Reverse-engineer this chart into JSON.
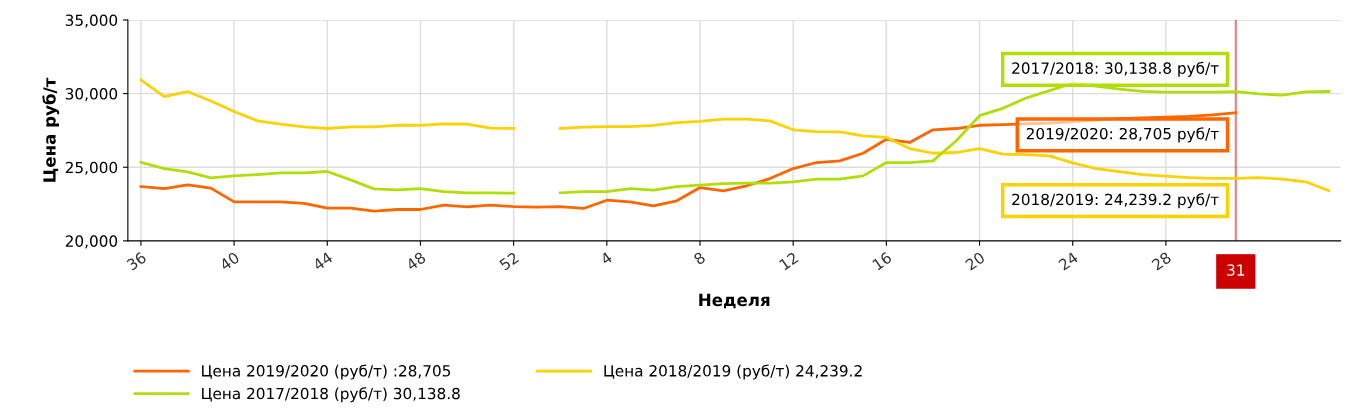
{
  "chart_data": {
    "type": "line",
    "xlabel": "Неделя",
    "ylabel": "Цена руб/т",
    "categories": [
      "36",
      null,
      null,
      null,
      "40",
      null,
      null,
      null,
      "44",
      null,
      null,
      null,
      "48",
      null,
      null,
      null,
      "52",
      null,
      null,
      null,
      "4",
      null,
      null,
      null,
      "8",
      null,
      null,
      null,
      "12",
      null,
      null,
      null,
      "16",
      null,
      null,
      null,
      "20",
      null,
      null,
      null,
      "24",
      null,
      null,
      null,
      "28",
      null,
      null,
      "31",
      null,
      null,
      null,
      null
    ],
    "series": [
      {
        "name": "Цена 2019/2020 (руб/т) :28,705",
        "color": "#ff6600",
        "values": [
          23690,
          23550,
          23800,
          23580,
          22650,
          22650,
          22650,
          22540,
          22220,
          22220,
          22020,
          22130,
          22130,
          22420,
          22310,
          22420,
          22330,
          22290,
          22330,
          22200,
          22760,
          22650,
          22380,
          22720,
          23620,
          23400,
          23740,
          24230,
          24910,
          25320,
          25430,
          25950,
          26900,
          26680,
          27540,
          27630,
          27850,
          27900,
          27950,
          28000,
          28100,
          28200,
          28300,
          28350,
          28400,
          28450,
          28550,
          28705,
          null,
          null,
          null,
          null
        ]
      },
      {
        "name": "Цена 2018/2019 (руб/т) 24,239.2",
        "color": "#fcd202",
        "values": [
          30930,
          29800,
          30140,
          29500,
          28780,
          28150,
          27920,
          27740,
          27630,
          27740,
          27740,
          27850,
          27850,
          27940,
          27920,
          27650,
          27630,
          null,
          27630,
          27720,
          27760,
          27760,
          27850,
          28030,
          28120,
          28260,
          28260,
          28150,
          27540,
          27420,
          27400,
          27130,
          27020,
          26270,
          25950,
          26000,
          26270,
          25890,
          25850,
          25770,
          25300,
          24900,
          24700,
          24500,
          24400,
          24300,
          24250,
          24239.2,
          24300,
          24190,
          24010,
          23400
        ]
      },
      {
        "name": "Цена 2017/2018 (руб/т) 30,138.8",
        "color": "#b0de09",
        "values": [
          25340,
          24910,
          24690,
          24280,
          24410,
          24500,
          24620,
          24620,
          24710,
          24140,
          23530,
          23460,
          23550,
          23350,
          23260,
          23260,
          23240,
          null,
          23260,
          23350,
          23350,
          23550,
          23440,
          23690,
          23780,
          23890,
          23920,
          23920,
          24010,
          24190,
          24190,
          24410,
          25320,
          25320,
          25430,
          26800,
          28500,
          29000,
          29700,
          30200,
          30700,
          30500,
          30300,
          30150,
          30100,
          30100,
          30100,
          30138.8,
          29980,
          29890,
          30110,
          30140
        ]
      }
    ],
    "ylim": [
      20000,
      35000
    ],
    "yticks": [
      {
        "value": 20000,
        "label": "20,000"
      },
      {
        "value": 25000,
        "label": "25,000"
      },
      {
        "value": 30000,
        "label": "30,000"
      },
      {
        "value": 35000,
        "label": "35,000"
      }
    ],
    "grid": true,
    "legend": "bottom",
    "marker": "none",
    "line_style": "solid",
    "ref_lines": [
      {
        "axis": "x",
        "value": "31",
        "label": "31",
        "color": "#cc0000"
      }
    ],
    "annotations": [
      {
        "text": "2017/2018: 30,138.8 руб/т",
        "x": "31",
        "y": 30138.8
      },
      {
        "text": "2019/2020: 28,705 руб/т",
        "x": "31",
        "y": 28705
      },
      {
        "text": "2018/2019: 24,239.2 руб/т",
        "x": "31",
        "y": 24239.2
      }
    ]
  }
}
